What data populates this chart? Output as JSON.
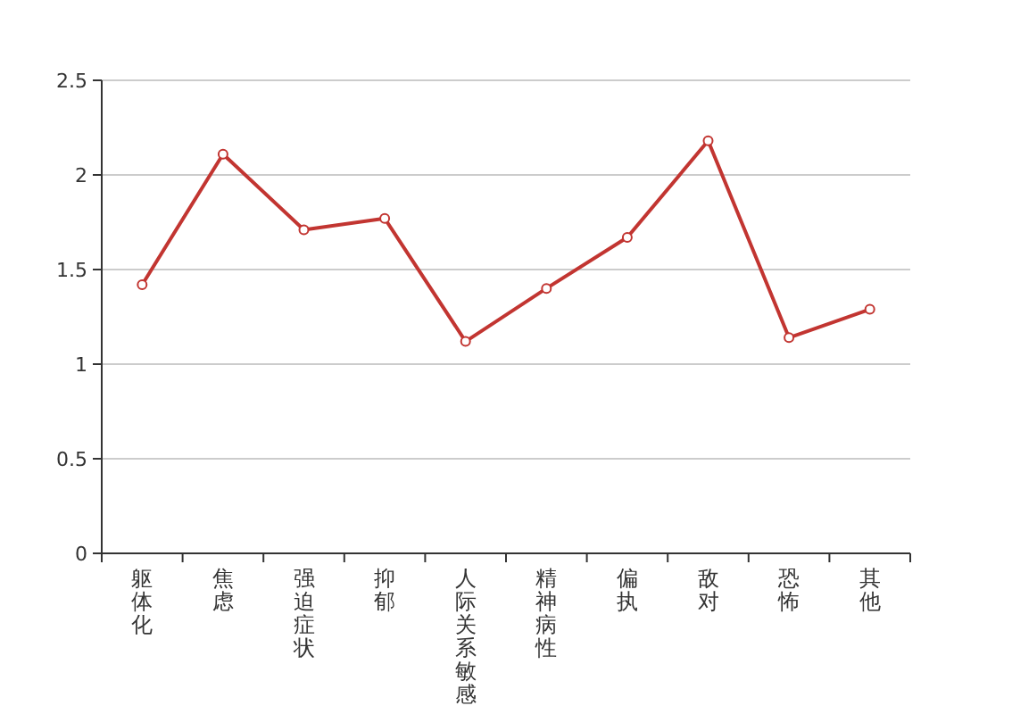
{
  "chart_data": {
    "type": "line",
    "categories": [
      "躯体化",
      "焦虑",
      "强迫症状",
      "抑郁",
      "人际关系敏感",
      "精神病性",
      "偏执",
      "敌对",
      "恐怖",
      "其他"
    ],
    "series": [
      {
        "color": "#c23531",
        "values": [
          1.42,
          2.11,
          1.71,
          1.77,
          1.12,
          1.4,
          1.67,
          2.18,
          1.14,
          1.29
        ]
      }
    ],
    "ylim": [
      0,
      2.5
    ],
    "yticks": [
      0,
      0.5,
      1,
      1.5,
      2,
      2.5
    ],
    "grid": "y",
    "marker": "circle",
    "line_style": "solid"
  }
}
